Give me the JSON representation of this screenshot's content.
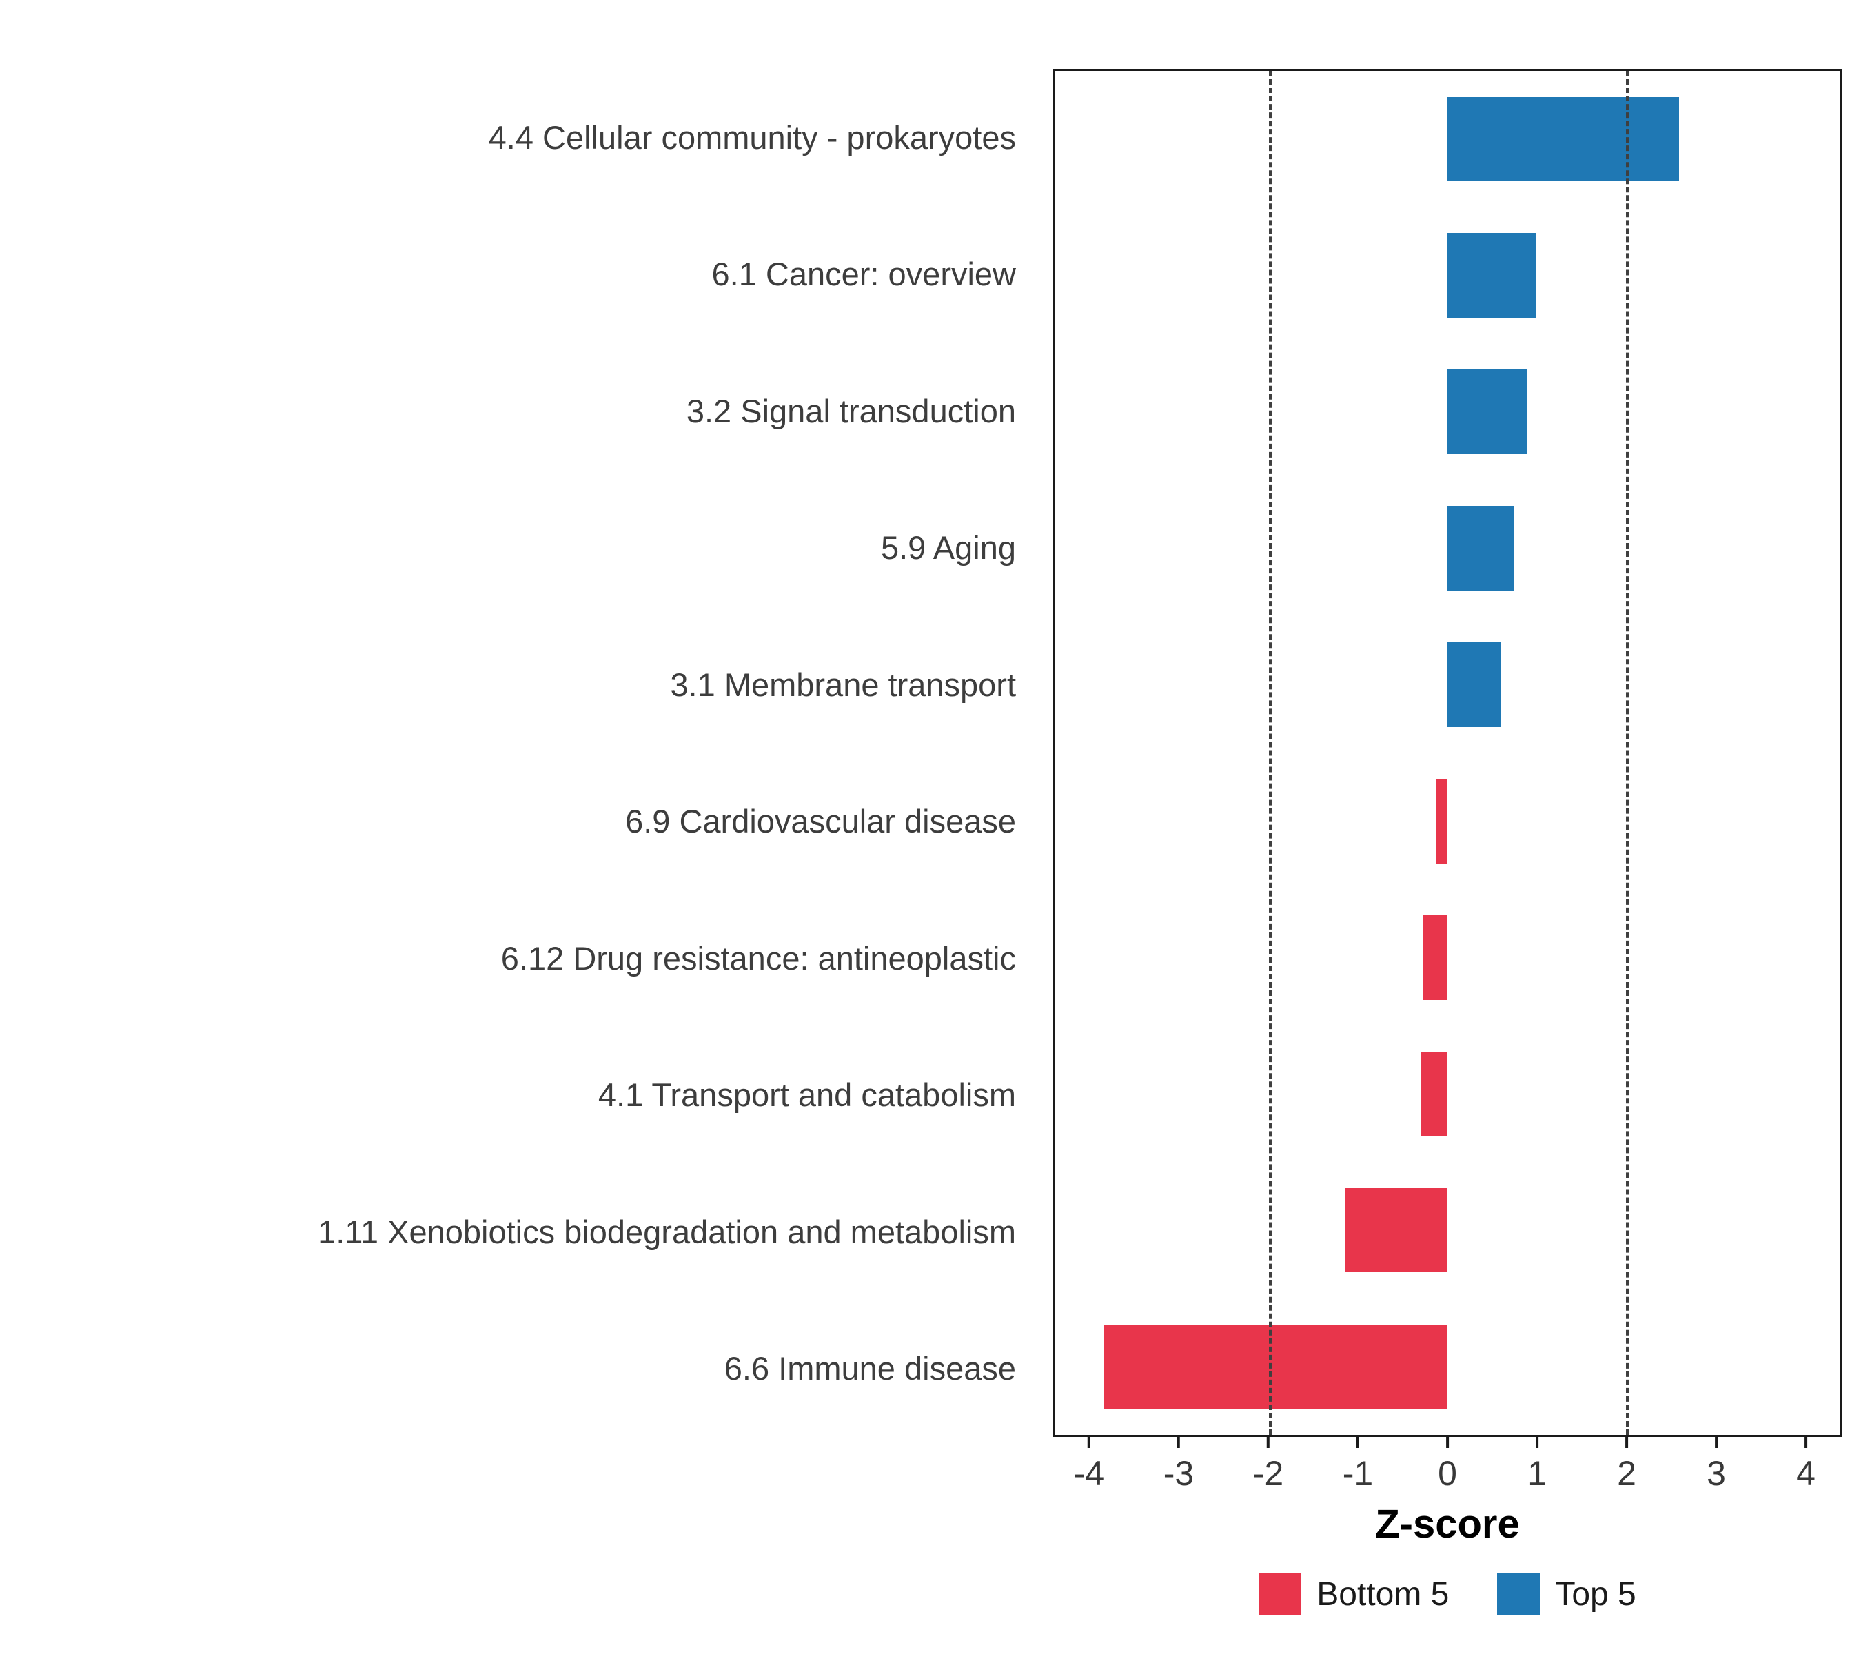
{
  "chart_data": {
    "type": "bar",
    "orientation": "horizontal",
    "title": "",
    "xlabel": "Z-score",
    "ylabel": "",
    "xlim": [
      -4.4,
      4.4
    ],
    "x_ticks": [
      -4,
      -3,
      -2,
      -1,
      0,
      1,
      2,
      3,
      4
    ],
    "vlines": [
      -2,
      2
    ],
    "grid": false,
    "legend_position": "bottom",
    "categories": [
      "4.4 Cellular community - prokaryotes",
      "6.1 Cancer: overview",
      "3.2 Signal transduction",
      "5.9 Aging",
      "3.1 Membrane transport",
      "6.9 Cardiovascular disease",
      "6.12 Drug resistance: antineoplastic",
      "4.1 Transport and catabolism",
      "1.11 Xenobiotics biodegradation and metabolism",
      "6.6 Immune disease"
    ],
    "values": [
      2.6,
      1.0,
      0.9,
      0.75,
      0.6,
      -0.12,
      -0.28,
      -0.3,
      -1.15,
      -3.85
    ],
    "groups": [
      "Top 5",
      "Top 5",
      "Top 5",
      "Top 5",
      "Top 5",
      "Bottom 5",
      "Bottom 5",
      "Bottom 5",
      "Bottom 5",
      "Bottom 5"
    ],
    "colors": {
      "Bottom 5": "#E8354B",
      "Top 5": "#1F78B4"
    },
    "legend": [
      {
        "label": "Bottom 5",
        "color": "#E8354B"
      },
      {
        "label": "Top 5",
        "color": "#1F78B4"
      }
    ]
  }
}
